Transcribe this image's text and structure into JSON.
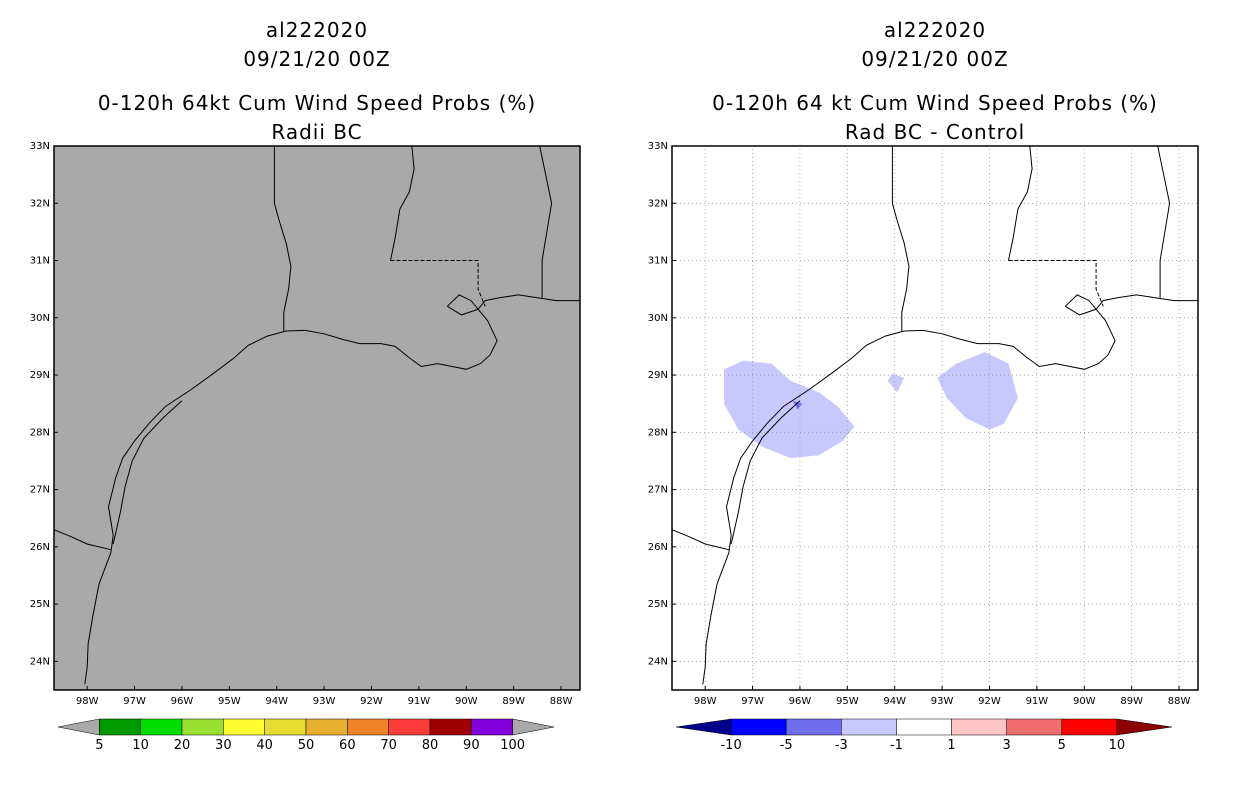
{
  "panels": [
    {
      "id": "left",
      "storm_id": "al222020",
      "datetime": "09/21/20 00Z",
      "product": "0-120h 64kt Cum Wind Speed Probs (%)",
      "subtitle": "Radii BC",
      "fill_color": "#a9a9a9",
      "grid": false,
      "colorbar": {
        "labels": [
          "5",
          "10",
          "20",
          "30",
          "40",
          "50",
          "60",
          "70",
          "80",
          "90",
          "100"
        ],
        "colors": [
          "#a9a9a9",
          "#009900",
          "#00dd00",
          "#99e033",
          "#ffff33",
          "#e6dc32",
          "#e6af2d",
          "#f0822a",
          "#fa3c3c",
          "#a00000",
          "#8200dc",
          "#a9a9a9"
        ]
      }
    },
    {
      "id": "right",
      "storm_id": "al222020",
      "datetime": "09/21/20 00Z",
      "product": "0-120h 64 kt Cum Wind Speed Probs (%)",
      "subtitle": "Rad BC - Control",
      "fill_color": "#ffffff",
      "grid": true,
      "colorbar": {
        "labels": [
          "-10",
          "-5",
          "-3",
          "-1",
          "1",
          "3",
          "5",
          "10"
        ],
        "colors": [
          "#00008b",
          "#0000ff",
          "#6e6eef",
          "#c8c8ff",
          "#ffffff",
          "#ffc4c4",
          "#f06e6e",
          "#ff0000",
          "#8b0000"
        ]
      }
    }
  ],
  "axes": {
    "lat_labels": [
      "33N",
      "32N",
      "31N",
      "30N",
      "29N",
      "28N",
      "27N",
      "26N",
      "25N",
      "24N"
    ],
    "lon_labels": [
      "98W",
      "97W",
      "96W",
      "95W",
      "94W",
      "93W",
      "92W",
      "91W",
      "90W",
      "89W",
      "88W"
    ]
  }
}
